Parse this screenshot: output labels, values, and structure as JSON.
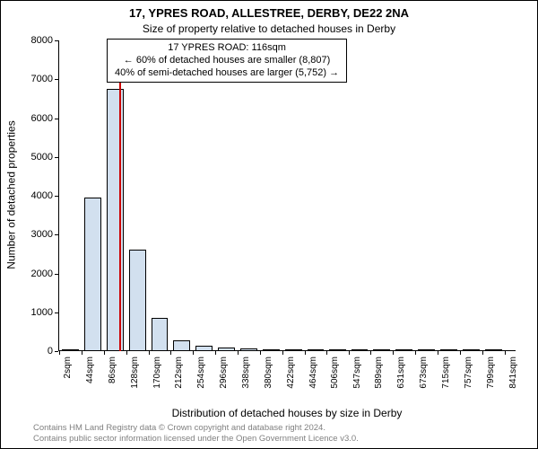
{
  "title": "17, YPRES ROAD, ALLESTREE, DERBY, DE22 2NA",
  "subtitle": "Size of property relative to detached houses in Derby",
  "callout": {
    "line1": "17 YPRES ROAD: 116sqm",
    "line2": "← 60% of detached houses are smaller (8,807)",
    "line3": "40% of semi-detached houses are larger (5,752) →"
  },
  "ylabel": "Number of detached properties",
  "xlabel": "Distribution of detached houses by size in Derby",
  "footer": {
    "line1": "Contains HM Land Registry data © Crown copyright and database right 2024.",
    "line2": "Contains public sector information licensed under the Open Government Licence v3.0."
  },
  "chart": {
    "type": "histogram",
    "background_color": "#ffffff",
    "bar_fill": "#d2e0ef",
    "bar_stroke": "#000000",
    "marker_color": "#cc0000",
    "marker_x_value": 116,
    "ylim": [
      0,
      8000
    ],
    "ytick_step": 1000,
    "xlim": [
      0,
      862
    ],
    "xtick_labels": [
      "2sqm",
      "44sqm",
      "86sqm",
      "128sqm",
      "170sqm",
      "212sqm",
      "254sqm",
      "296sqm",
      "338sqm",
      "380sqm",
      "422sqm",
      "464sqm",
      "506sqm",
      "547sqm",
      "589sqm",
      "631sqm",
      "673sqm",
      "715sqm",
      "757sqm",
      "799sqm",
      "841sqm"
    ],
    "xtick_values": [
      2,
      44,
      86,
      128,
      170,
      212,
      254,
      296,
      338,
      380,
      422,
      464,
      506,
      547,
      589,
      631,
      673,
      715,
      757,
      799,
      841
    ],
    "bin_width": 42,
    "bar_width_ratio": 0.76,
    "bar_border_width": 1,
    "bins": [
      {
        "start": 2,
        "value": 20
      },
      {
        "start": 44,
        "value": 3950
      },
      {
        "start": 86,
        "value": 6750
      },
      {
        "start": 128,
        "value": 2620
      },
      {
        "start": 170,
        "value": 860
      },
      {
        "start": 212,
        "value": 280
      },
      {
        "start": 254,
        "value": 140
      },
      {
        "start": 296,
        "value": 100
      },
      {
        "start": 338,
        "value": 60
      },
      {
        "start": 380,
        "value": 40
      },
      {
        "start": 422,
        "value": 10
      },
      {
        "start": 464,
        "value": 10
      },
      {
        "start": 506,
        "value": 5
      },
      {
        "start": 547,
        "value": 5
      },
      {
        "start": 589,
        "value": 5
      },
      {
        "start": 631,
        "value": 2
      },
      {
        "start": 673,
        "value": 2
      },
      {
        "start": 715,
        "value": 2
      },
      {
        "start": 757,
        "value": 2
      },
      {
        "start": 799,
        "value": 2
      }
    ],
    "axis_fontsize": 11,
    "tick_fontsize": 10
  }
}
